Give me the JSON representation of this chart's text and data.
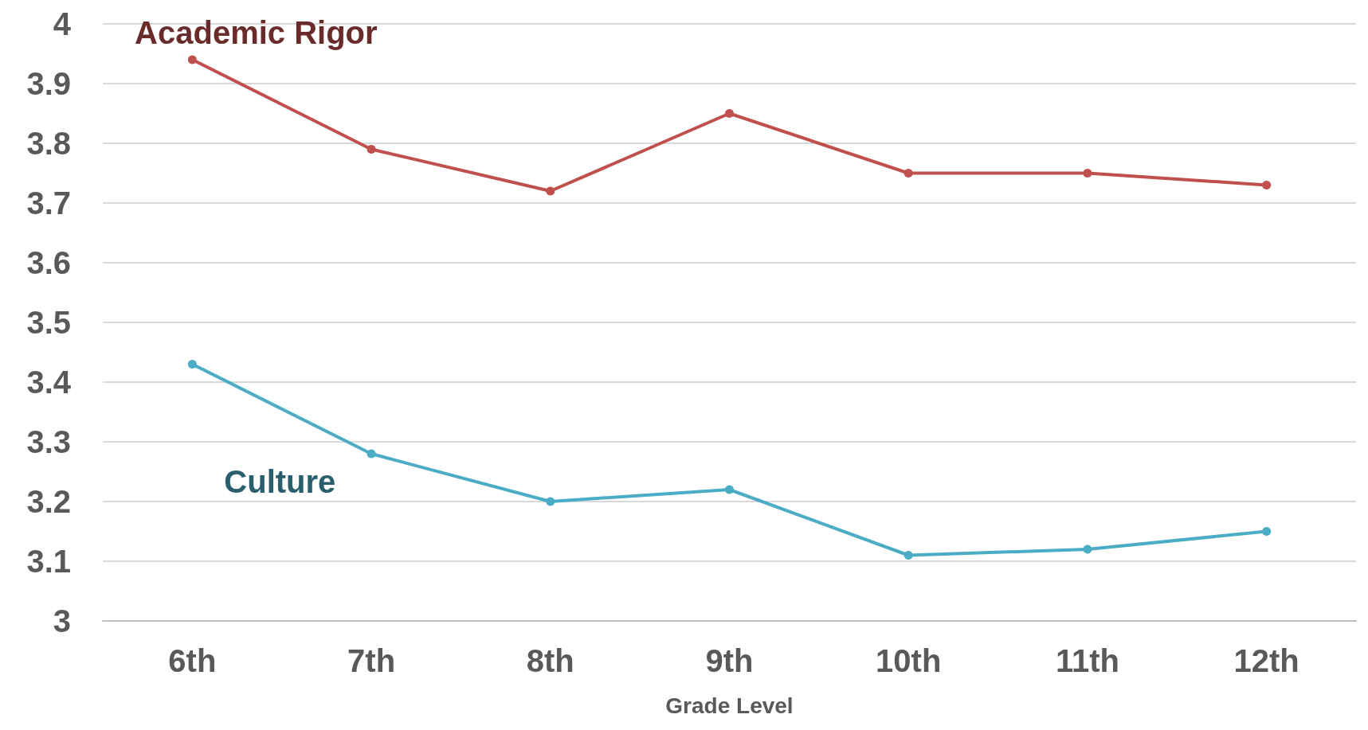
{
  "chart_data": {
    "type": "line",
    "xlabel": "Grade Level",
    "categories": [
      "6th",
      "7th",
      "8th",
      "9th",
      "10th",
      "11th",
      "12th"
    ],
    "series": [
      {
        "name": "Academic Rigor",
        "color": "#c0504d",
        "values": [
          3.94,
          3.79,
          3.72,
          3.85,
          3.75,
          3.75,
          3.73
        ]
      },
      {
        "name": "Culture",
        "color": "#4bacc6",
        "values": [
          3.43,
          3.28,
          3.2,
          3.22,
          3.11,
          3.12,
          3.15
        ]
      }
    ],
    "ylim": [
      3,
      4
    ],
    "yticks": [
      3,
      3.1,
      3.2,
      3.3,
      3.4,
      3.5,
      3.6,
      3.7,
      3.8,
      3.9,
      4
    ],
    "grid": "y",
    "marker": "circle",
    "line_style": "solid",
    "legend": false
  }
}
